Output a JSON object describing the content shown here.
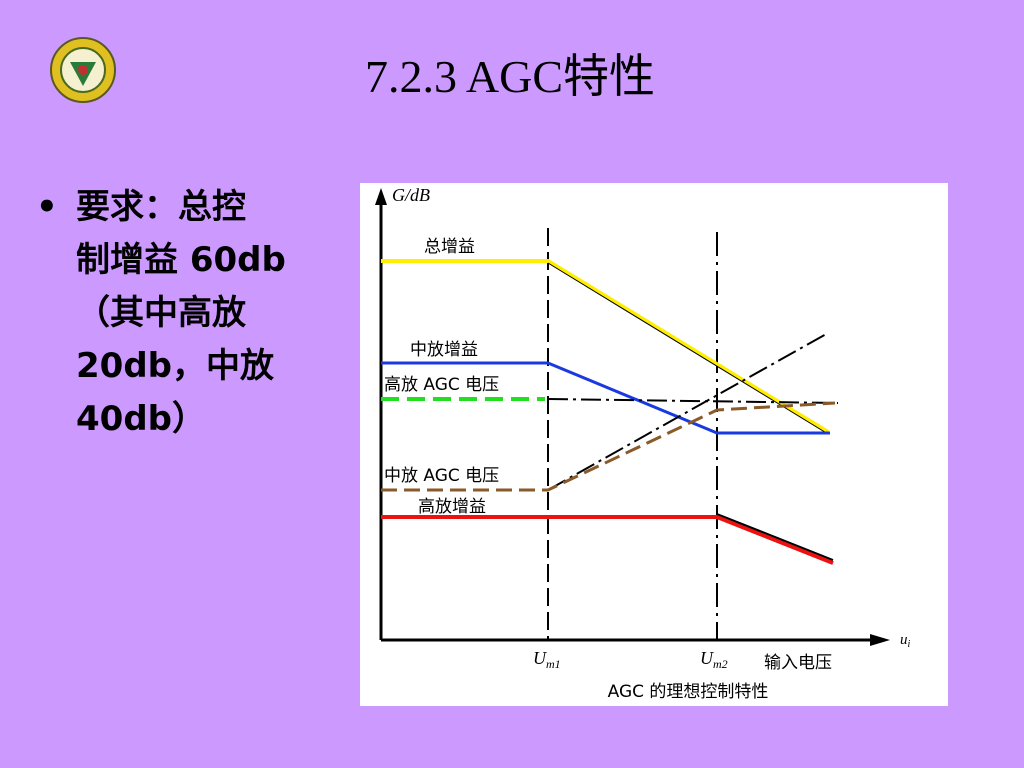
{
  "title": "7.2.3 AGC特性",
  "bullet": {
    "lines": [
      "要求：总控",
      "制增益 60db",
      "（其中高放",
      "20db，中放",
      "40db）"
    ]
  },
  "figure": {
    "y_axis_label": "G/dB",
    "x_axis_label": {
      "main": "u",
      "sub": "i"
    },
    "x_axis_name": "输入电压",
    "curve_labels": [
      "总增益",
      "中放增益",
      "高放 AGC 电压",
      "中放 AGC 电压",
      "高放增益"
    ],
    "thresholds": [
      {
        "main": "U",
        "sub": "m1"
      },
      {
        "main": "U",
        "sub": "m2"
      }
    ],
    "caption": "AGC 的理想控制特性"
  }
}
